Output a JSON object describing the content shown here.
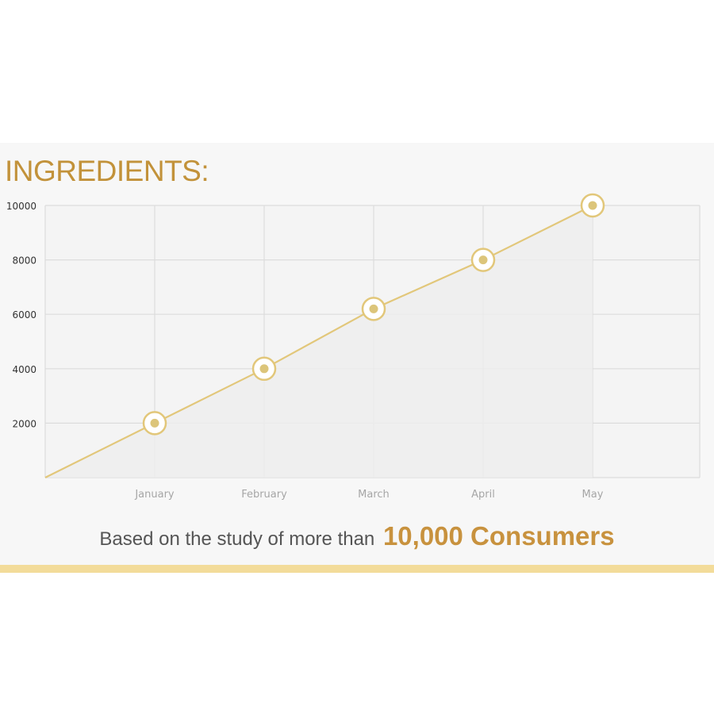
{
  "title": "INGREDIENTS:",
  "caption": {
    "text": "Based on the study of more than",
    "highlight": "10,000 Consumers"
  },
  "colors": {
    "accent": "#c2923a",
    "line": "#e2c77a",
    "point_fill": "#dcc57a",
    "strip": "#f3dc9a"
  },
  "chart_data": {
    "type": "line",
    "categories": [
      "January",
      "February",
      "March",
      "April",
      "May"
    ],
    "series": [
      {
        "values": [
          2000,
          4000,
          6200,
          8000,
          10000
        ]
      }
    ],
    "origin_value": 0,
    "ylim": [
      0,
      10000
    ],
    "yticks": [
      "2000",
      "4000",
      "6000",
      "8000",
      "10000"
    ],
    "grid": true,
    "legend": "none",
    "area_fill": true
  }
}
